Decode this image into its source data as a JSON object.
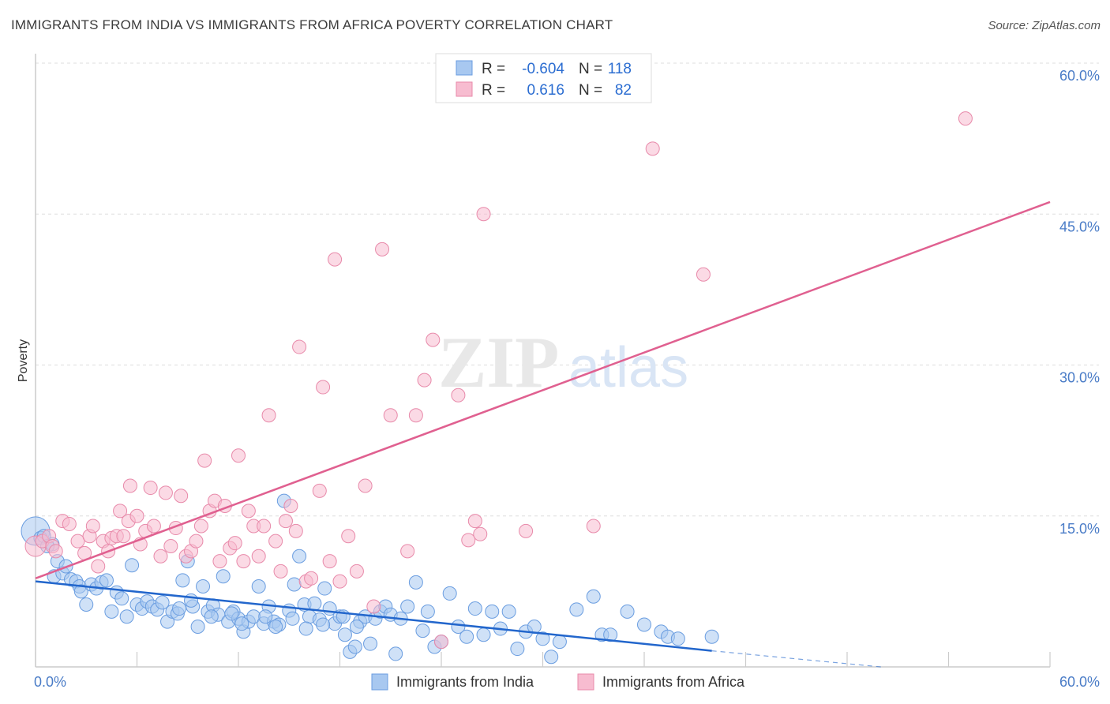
{
  "title": "IMMIGRANTS FROM INDIA VS IMMIGRANTS FROM AFRICA POVERTY CORRELATION CHART",
  "source": "Source: ZipAtlas.com",
  "watermark": {
    "zip": "ZIP",
    "atlas": "atlas"
  },
  "legend": {
    "india": {
      "r_label": "R =",
      "r_value": "-0.604",
      "n_label": "N =",
      "n_value": "118"
    },
    "africa": {
      "r_label": "R =",
      "r_value": "0.616",
      "n_label": "N =",
      "n_value": "82"
    }
  },
  "bottom_legend": {
    "india": "Immigrants from India",
    "africa": "Immigrants from Africa"
  },
  "colors": {
    "india_fill": "#a8c8f0",
    "india_stroke": "#6a9de0",
    "india_line": "#2266cc",
    "africa_fill": "#f7bcd0",
    "africa_stroke": "#e88aaa",
    "africa_line": "#e06090",
    "tick": "#4a7cc7",
    "grid": "#dddddd"
  },
  "chart_data": {
    "type": "scatter",
    "title": "IMMIGRANTS FROM INDIA VS IMMIGRANTS FROM AFRICA POVERTY CORRELATION CHART",
    "xlabel": "",
    "ylabel": "Poverty",
    "xlim": [
      0,
      60
    ],
    "ylim": [
      0,
      60
    ],
    "x_tick_labels": [
      "0.0%",
      "60.0%"
    ],
    "y_ticks": [
      15,
      30,
      45,
      60
    ],
    "y_tick_labels": [
      "15.0%",
      "30.0%",
      "45.0%",
      "60.0%"
    ],
    "grid": true,
    "legend_position": "top-center",
    "series": [
      {
        "name": "Immigrants from India",
        "R": -0.604,
        "N": 118,
        "trend": {
          "x0": 0,
          "y0": 8.5,
          "x1": 40,
          "y1": 1.6,
          "dash_to": 50,
          "dash_y": 0
        },
        "points": [
          [
            0,
            13.5
          ],
          [
            0.3,
            12.8
          ],
          [
            0.5,
            13.0
          ],
          [
            1.0,
            12.2
          ],
          [
            0.7,
            12.0
          ],
          [
            1.1,
            9.0
          ],
          [
            1.3,
            10.5
          ],
          [
            1.6,
            9.3
          ],
          [
            1.8,
            10.0
          ],
          [
            2.1,
            8.7
          ],
          [
            2.4,
            8.5
          ],
          [
            2.6,
            8.0
          ],
          [
            2.7,
            7.5
          ],
          [
            3.0,
            6.2
          ],
          [
            3.3,
            8.2
          ],
          [
            3.6,
            7.8
          ],
          [
            3.9,
            8.4
          ],
          [
            4.2,
            8.6
          ],
          [
            4.5,
            5.5
          ],
          [
            4.8,
            7.4
          ],
          [
            5.1,
            6.8
          ],
          [
            5.4,
            5.0
          ],
          [
            5.7,
            10.1
          ],
          [
            6.0,
            6.2
          ],
          [
            6.3,
            5.8
          ],
          [
            6.6,
            6.5
          ],
          [
            6.9,
            6.0
          ],
          [
            7.2,
            5.7
          ],
          [
            7.5,
            6.4
          ],
          [
            7.8,
            4.5
          ],
          [
            8.1,
            5.5
          ],
          [
            8.4,
            5.3
          ],
          [
            8.7,
            8.6
          ],
          [
            9.0,
            10.5
          ],
          [
            9.3,
            6.0
          ],
          [
            9.6,
            4.0
          ],
          [
            9.9,
            8.0
          ],
          [
            10.2,
            5.5
          ],
          [
            10.5,
            6.1
          ],
          [
            10.8,
            5.2
          ],
          [
            11.1,
            9.0
          ],
          [
            11.4,
            4.5
          ],
          [
            11.7,
            5.5
          ],
          [
            12.0,
            4.8
          ],
          [
            12.3,
            3.5
          ],
          [
            12.6,
            4.5
          ],
          [
            12.9,
            5.0
          ],
          [
            13.2,
            8.0
          ],
          [
            13.5,
            4.3
          ],
          [
            13.8,
            6.0
          ],
          [
            14.1,
            4.5
          ],
          [
            14.4,
            4.2
          ],
          [
            14.7,
            16.5
          ],
          [
            15.0,
            5.6
          ],
          [
            15.3,
            8.2
          ],
          [
            15.6,
            11.0
          ],
          [
            15.9,
            6.2
          ],
          [
            16.2,
            5.0
          ],
          [
            16.5,
            6.3
          ],
          [
            16.8,
            4.7
          ],
          [
            17.1,
            7.8
          ],
          [
            17.4,
            5.8
          ],
          [
            17.7,
            4.3
          ],
          [
            18.0,
            5.0
          ],
          [
            18.3,
            3.2
          ],
          [
            18.6,
            1.5
          ],
          [
            18.9,
            2.0
          ],
          [
            19.2,
            4.5
          ],
          [
            19.5,
            5.0
          ],
          [
            19.8,
            2.3
          ],
          [
            20.1,
            4.8
          ],
          [
            20.4,
            5.5
          ],
          [
            20.7,
            6.0
          ],
          [
            21.0,
            5.2
          ],
          [
            21.3,
            1.3
          ],
          [
            21.6,
            4.8
          ],
          [
            22.0,
            6.0
          ],
          [
            22.5,
            8.4
          ],
          [
            22.9,
            3.6
          ],
          [
            23.2,
            5.5
          ],
          [
            23.6,
            2.0
          ],
          [
            24.0,
            2.5
          ],
          [
            24.5,
            7.3
          ],
          [
            25.0,
            4.0
          ],
          [
            25.5,
            3.0
          ],
          [
            26.0,
            5.8
          ],
          [
            26.5,
            3.2
          ],
          [
            27.0,
            5.5
          ],
          [
            27.5,
            3.8
          ],
          [
            28.0,
            5.5
          ],
          [
            28.5,
            1.8
          ],
          [
            29.0,
            3.5
          ],
          [
            29.5,
            4.0
          ],
          [
            30.0,
            2.8
          ],
          [
            30.5,
            1.0
          ],
          [
            31.0,
            2.5
          ],
          [
            32.0,
            5.7
          ],
          [
            33.0,
            7.0
          ],
          [
            33.5,
            3.2
          ],
          [
            34.0,
            3.2
          ],
          [
            35.0,
            5.5
          ],
          [
            36.0,
            4.2
          ],
          [
            37.0,
            3.5
          ],
          [
            37.4,
            3.0
          ],
          [
            38.0,
            2.8
          ],
          [
            40.0,
            3.0
          ],
          [
            8.5,
            5.8
          ],
          [
            9.2,
            6.6
          ],
          [
            10.4,
            5.0
          ],
          [
            11.6,
            5.3
          ],
          [
            12.2,
            4.3
          ],
          [
            13.6,
            5.0
          ],
          [
            14.2,
            4.0
          ],
          [
            15.2,
            4.8
          ],
          [
            16.0,
            3.8
          ],
          [
            17.0,
            4.2
          ],
          [
            18.2,
            5.0
          ],
          [
            19.0,
            4.0
          ]
        ]
      },
      {
        "name": "Immigrants from Africa",
        "R": 0.616,
        "N": 82,
        "trend": {
          "x0": 0,
          "y0": 8.8,
          "x1": 60,
          "y1": 46.2
        },
        "points": [
          [
            0,
            12.0
          ],
          [
            0.4,
            12.5
          ],
          [
            0.8,
            13.0
          ],
          [
            1.0,
            12.0
          ],
          [
            1.2,
            11.5
          ],
          [
            1.6,
            14.5
          ],
          [
            2.0,
            14.2
          ],
          [
            2.5,
            12.5
          ],
          [
            2.9,
            11.3
          ],
          [
            3.2,
            13.0
          ],
          [
            3.4,
            14.0
          ],
          [
            3.7,
            10.0
          ],
          [
            4.0,
            12.5
          ],
          [
            4.3,
            11.5
          ],
          [
            4.5,
            12.8
          ],
          [
            4.8,
            13.0
          ],
          [
            5.0,
            15.5
          ],
          [
            5.2,
            13.0
          ],
          [
            5.5,
            14.5
          ],
          [
            5.6,
            18.0
          ],
          [
            6.0,
            15.0
          ],
          [
            6.2,
            12.2
          ],
          [
            6.5,
            13.5
          ],
          [
            6.8,
            17.8
          ],
          [
            7.0,
            14.0
          ],
          [
            7.4,
            11.0
          ],
          [
            7.7,
            17.3
          ],
          [
            8.0,
            12.0
          ],
          [
            8.3,
            13.8
          ],
          [
            8.6,
            17.0
          ],
          [
            8.9,
            11.0
          ],
          [
            9.2,
            11.5
          ],
          [
            9.5,
            12.5
          ],
          [
            9.8,
            14.0
          ],
          [
            10.0,
            20.5
          ],
          [
            10.3,
            15.5
          ],
          [
            10.6,
            16.5
          ],
          [
            10.9,
            10.5
          ],
          [
            11.2,
            16.0
          ],
          [
            11.5,
            11.8
          ],
          [
            11.8,
            12.3
          ],
          [
            12.0,
            21.0
          ],
          [
            12.3,
            10.5
          ],
          [
            12.6,
            15.5
          ],
          [
            12.9,
            14.0
          ],
          [
            13.2,
            11.0
          ],
          [
            13.5,
            14.0
          ],
          [
            13.8,
            25.0
          ],
          [
            14.2,
            12.5
          ],
          [
            14.5,
            9.5
          ],
          [
            14.8,
            14.5
          ],
          [
            15.1,
            16.0
          ],
          [
            15.4,
            13.5
          ],
          [
            15.6,
            31.8
          ],
          [
            16.0,
            8.5
          ],
          [
            16.3,
            8.8
          ],
          [
            16.8,
            17.5
          ],
          [
            17.0,
            27.8
          ],
          [
            17.4,
            10.5
          ],
          [
            17.7,
            40.5
          ],
          [
            18.0,
            8.5
          ],
          [
            18.5,
            13.0
          ],
          [
            19.0,
            9.5
          ],
          [
            19.5,
            18.0
          ],
          [
            20.0,
            6.0
          ],
          [
            20.5,
            41.5
          ],
          [
            21.0,
            25.0
          ],
          [
            22.0,
            11.5
          ],
          [
            22.5,
            25.0
          ],
          [
            23.0,
            28.5
          ],
          [
            23.5,
            32.5
          ],
          [
            24.0,
            2.5
          ],
          [
            25.0,
            27.0
          ],
          [
            26.0,
            14.5
          ],
          [
            26.5,
            45.0
          ],
          [
            29.0,
            13.5
          ],
          [
            33.0,
            14.0
          ],
          [
            36.5,
            51.5
          ],
          [
            39.5,
            39.0
          ],
          [
            55.0,
            54.5
          ],
          [
            25.6,
            12.6
          ],
          [
            26.3,
            13.2
          ]
        ]
      }
    ]
  }
}
